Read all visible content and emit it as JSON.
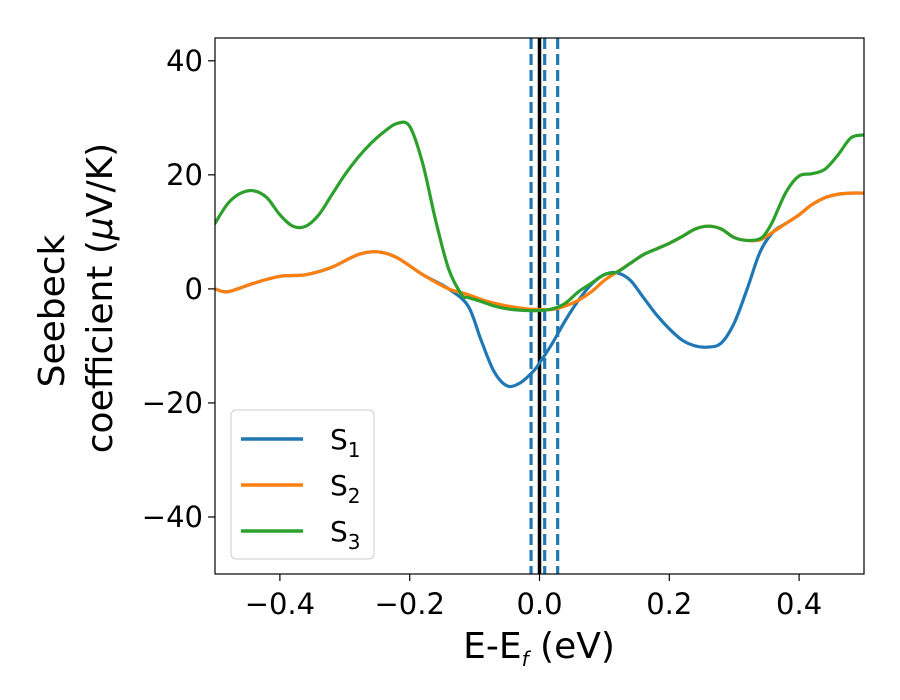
{
  "chart_data": {
    "type": "line",
    "xlabel": {
      "main": "E-E",
      "sub": "f",
      "unit": " (eV)"
    },
    "ylabel": {
      "line1": "Seebeck",
      "line2_prefix": "coefficient  (",
      "mu": "μ",
      "line2_suffix": "V/K)"
    },
    "xlim": [
      -0.5,
      0.5
    ],
    "ylim": [
      -50,
      44
    ],
    "xticks": [
      -0.4,
      -0.2,
      0.0,
      0.2,
      0.4
    ],
    "xtick_labels": [
      "−0.4",
      "−0.2",
      "0.0",
      "0.2",
      "0.4"
    ],
    "yticks": [
      -40,
      -20,
      0,
      20,
      40
    ],
    "ytick_labels": [
      "−40",
      "−20",
      "0",
      "20",
      "40"
    ],
    "grid": false,
    "legend_position": "lower-left",
    "vlines": [
      {
        "x": 0.0,
        "style": "solid",
        "color": "#000000"
      },
      {
        "x": -0.013,
        "style": "dashed",
        "color": "#1f77b4"
      },
      {
        "x": 0.008,
        "style": "dashed",
        "color": "#1f77b4"
      },
      {
        "x": 0.028,
        "style": "dashed",
        "color": "#1f77b4"
      }
    ],
    "series": [
      {
        "name": "S",
        "sub": "1",
        "color": "#1f77b4",
        "x": [
          -0.5,
          -0.48,
          -0.44,
          -0.4,
          -0.36,
          -0.32,
          -0.28,
          -0.25,
          -0.22,
          -0.18,
          -0.14,
          -0.11,
          -0.09,
          -0.07,
          -0.05,
          -0.03,
          -0.01,
          0.0,
          0.02,
          0.04,
          0.06,
          0.08,
          0.1,
          0.12,
          0.14,
          0.16,
          0.18,
          0.2,
          0.22,
          0.24,
          0.26,
          0.28,
          0.3,
          0.32,
          0.34,
          0.36,
          0.38,
          0.4,
          0.42,
          0.44,
          0.46,
          0.48,
          0.5
        ],
        "y": [
          0,
          -0.5,
          1.0,
          2.2,
          2.5,
          3.8,
          6.0,
          6.5,
          5.5,
          2.5,
          0.0,
          -3.0,
          -9.0,
          -14.5,
          -17.0,
          -16.5,
          -14.5,
          -13.0,
          -9.5,
          -5.5,
          -2.0,
          0.8,
          2.5,
          2.8,
          1.5,
          -1.5,
          -4.5,
          -7.0,
          -9.0,
          -10.0,
          -10.2,
          -9.5,
          -6.0,
          0.0,
          6.5,
          10.0,
          11.5,
          13.0,
          14.8,
          16.0,
          16.6,
          16.8,
          16.8
        ]
      },
      {
        "name": "S",
        "sub": "2",
        "color": "#ff7f0e",
        "x": [
          -0.5,
          -0.48,
          -0.44,
          -0.4,
          -0.36,
          -0.32,
          -0.28,
          -0.25,
          -0.22,
          -0.18,
          -0.14,
          -0.11,
          -0.08,
          -0.05,
          -0.02,
          0.0,
          0.02,
          0.04,
          0.06,
          0.08,
          0.1,
          0.12,
          0.14,
          0.16,
          0.18,
          0.2,
          0.22,
          0.24,
          0.26,
          0.28,
          0.3,
          0.32,
          0.34,
          0.36,
          0.38,
          0.4,
          0.42,
          0.44,
          0.46,
          0.48,
          0.5
        ],
        "y": [
          0,
          -0.5,
          1.0,
          2.2,
          2.5,
          3.8,
          6.0,
          6.5,
          5.5,
          2.5,
          0.0,
          -1.0,
          -2.2,
          -3.0,
          -3.5,
          -3.6,
          -3.6,
          -3.0,
          -2.0,
          -0.5,
          1.5,
          3.0,
          4.5,
          6.0,
          7.0,
          8.0,
          9.2,
          10.5,
          11.0,
          10.5,
          9.0,
          8.5,
          8.6,
          10.0,
          11.5,
          13.0,
          14.8,
          16.0,
          16.6,
          16.8,
          16.8
        ]
      },
      {
        "name": "S",
        "sub": "3",
        "color": "#2ca02c",
        "x": [
          -0.5,
          -0.48,
          -0.46,
          -0.44,
          -0.42,
          -0.4,
          -0.38,
          -0.36,
          -0.34,
          -0.32,
          -0.3,
          -0.28,
          -0.26,
          -0.24,
          -0.22,
          -0.2,
          -0.18,
          -0.16,
          -0.14,
          -0.12,
          -0.11,
          -0.09,
          -0.07,
          -0.05,
          -0.02,
          0.0,
          0.02,
          0.04,
          0.06,
          0.08,
          0.1,
          0.12,
          0.14,
          0.16,
          0.18,
          0.2,
          0.22,
          0.24,
          0.26,
          0.28,
          0.3,
          0.32,
          0.34,
          0.35,
          0.36,
          0.38,
          0.4,
          0.42,
          0.44,
          0.46,
          0.48,
          0.5
        ],
        "y": [
          11.5,
          15.0,
          16.8,
          17.2,
          16.0,
          13.0,
          11.0,
          11.0,
          13.0,
          16.5,
          20.0,
          23.0,
          25.5,
          27.5,
          29.0,
          28.5,
          22.0,
          12.0,
          3.5,
          -1.0,
          -1.5,
          -2.2,
          -3.0,
          -3.5,
          -3.8,
          -3.8,
          -3.5,
          -2.5,
          -0.5,
          1.0,
          2.5,
          3.0,
          4.5,
          6.0,
          7.0,
          8.0,
          9.2,
          10.5,
          11.0,
          10.5,
          9.0,
          8.5,
          8.8,
          10.0,
          12.0,
          17.0,
          19.8,
          20.2,
          21.0,
          23.5,
          26.5,
          27.0
        ]
      }
    ]
  }
}
